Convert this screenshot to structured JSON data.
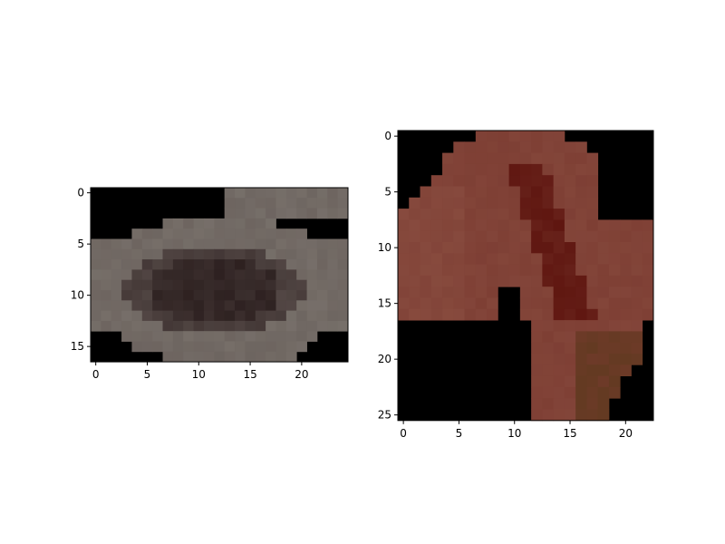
{
  "left_image": {
    "rows": 17,
    "cols": 25,
    "x_ticks": [
      "0",
      "5",
      "10",
      "15",
      "20"
    ],
    "y_ticks": [
      "0",
      "5",
      "10",
      "15"
    ],
    "palette": {
      "background": "#000000",
      "light": "#817b74",
      "mid": "#5d524f",
      "dark": "#251818"
    }
  },
  "right_image": {
    "rows": 26,
    "cols": 23,
    "x_ticks": [
      "0",
      "5",
      "10",
      "15",
      "20"
    ],
    "y_ticks": [
      "0",
      "5",
      "10",
      "15",
      "20",
      "25"
    ],
    "palette": {
      "background": "#000000",
      "light": "#8a4e41",
      "mid": "#7a3a30",
      "dark": "#5f1610",
      "olive": "#5a3a1c"
    }
  }
}
